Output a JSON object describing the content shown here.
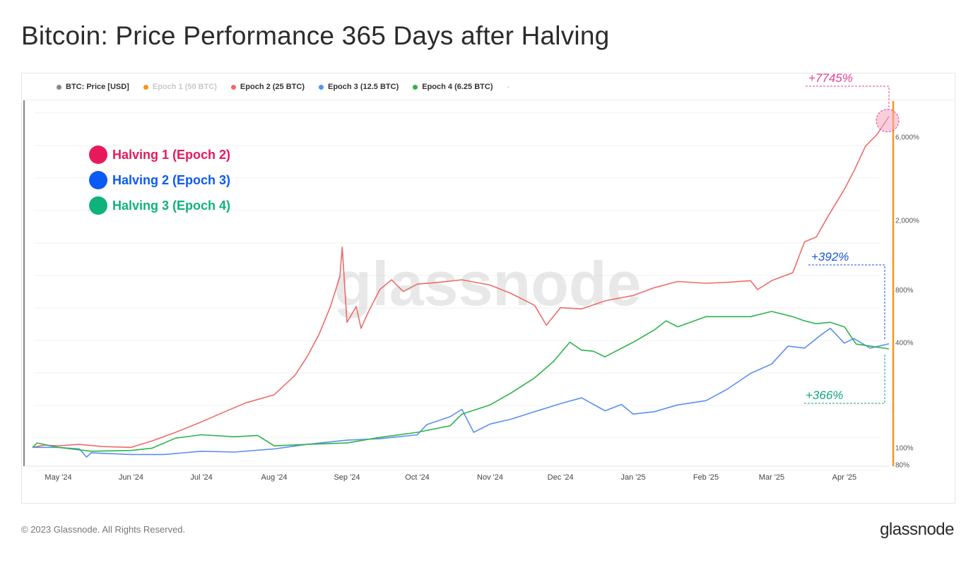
{
  "title": "Bitcoin: Price Performance 365 Days after Halving",
  "legend": [
    {
      "label": "BTC: Price [USD]",
      "color": "#888888",
      "enabled": true
    },
    {
      "label": "Epoch 1 (50 BTC)",
      "color": "#f7931a",
      "enabled": false
    },
    {
      "label": "Epoch 2 (25 BTC)",
      "color": "#ee6b6b",
      "enabled": true
    },
    {
      "label": "Epoch 3 (12.5 BTC)",
      "color": "#5b8ff0",
      "enabled": true
    },
    {
      "label": "Epoch 4 (6.25 BTC)",
      "color": "#2fb34a",
      "enabled": true
    }
  ],
  "legend_more": "-",
  "overlay_legend": [
    {
      "label": "Halving 1 (Epoch 2)",
      "color": "#e8195a"
    },
    {
      "label": "Halving 2 (Epoch 3)",
      "color": "#0a5bf5"
    },
    {
      "label": "Halving 3 (Epoch 4)",
      "color": "#0fb37a"
    }
  ],
  "annotations": [
    {
      "text": "+7745%",
      "color": "#e84393"
    },
    {
      "text": "+392%",
      "color": "#1a55e0"
    },
    {
      "text": "+366%",
      "color": "#11a37f"
    }
  ],
  "watermark": "glassnode",
  "footer": "© 2023 Glassnode. All Rights Reserved.",
  "brand": "glassnode",
  "chart_data": {
    "type": "line",
    "y_scale": "log",
    "yticks": [
      {
        "value": 80,
        "label": "80%"
      },
      {
        "value": 100,
        "label": "100%"
      },
      {
        "value": 400,
        "label": "400%"
      },
      {
        "value": 800,
        "label": "800%"
      },
      {
        "value": 2000,
        "label": "2,000%"
      },
      {
        "value": 6000,
        "label": "6,000%"
      }
    ],
    "ylim": [
      78,
      9000
    ],
    "xlim": [
      "2024-04-20",
      "2025-04-20"
    ],
    "xticks": [
      {
        "date": "2024-05-01",
        "label": "May '24"
      },
      {
        "date": "2024-06-01",
        "label": "Jun '24"
      },
      {
        "date": "2024-07-01",
        "label": "Jul '24"
      },
      {
        "date": "2024-08-01",
        "label": "Aug '24"
      },
      {
        "date": "2024-09-01",
        "label": "Sep '24"
      },
      {
        "date": "2024-10-01",
        "label": "Oct '24"
      },
      {
        "date": "2024-11-01",
        "label": "Nov '24"
      },
      {
        "date": "2024-12-01",
        "label": "Dec '24"
      },
      {
        "date": "2025-01-01",
        "label": "Jan '25"
      },
      {
        "date": "2025-02-01",
        "label": "Feb '25"
      },
      {
        "date": "2025-03-01",
        "label": "Mar '25"
      },
      {
        "date": "2025-04-01",
        "label": "Apr '25"
      }
    ],
    "vertical_marker": {
      "date": "2025-04-20",
      "color": "#f7931a"
    },
    "series": [
      {
        "name": "Epoch 2 (25 BTC)",
        "color": "#ee6b6b",
        "points": [
          {
            "x": "2024-04-20",
            "y": 100
          },
          {
            "x": "2024-04-25",
            "y": 103
          },
          {
            "x": "2024-05-01",
            "y": 102
          },
          {
            "x": "2024-05-10",
            "y": 104
          },
          {
            "x": "2024-05-20",
            "y": 101
          },
          {
            "x": "2024-06-01",
            "y": 100
          },
          {
            "x": "2024-06-10",
            "y": 109
          },
          {
            "x": "2024-06-20",
            "y": 122
          },
          {
            "x": "2024-07-01",
            "y": 140
          },
          {
            "x": "2024-07-10",
            "y": 158
          },
          {
            "x": "2024-07-20",
            "y": 180
          },
          {
            "x": "2024-08-01",
            "y": 200
          },
          {
            "x": "2024-08-10",
            "y": 260
          },
          {
            "x": "2024-08-15",
            "y": 330
          },
          {
            "x": "2024-08-20",
            "y": 440
          },
          {
            "x": "2024-08-25",
            "y": 640
          },
          {
            "x": "2024-08-29",
            "y": 950
          },
          {
            "x": "2024-08-30",
            "y": 1400
          },
          {
            "x": "2024-09-01",
            "y": 520
          },
          {
            "x": "2024-09-05",
            "y": 640
          },
          {
            "x": "2024-09-07",
            "y": 480
          },
          {
            "x": "2024-09-10",
            "y": 590
          },
          {
            "x": "2024-09-15",
            "y": 800
          },
          {
            "x": "2024-09-20",
            "y": 910
          },
          {
            "x": "2024-09-25",
            "y": 780
          },
          {
            "x": "2024-10-01",
            "y": 860
          },
          {
            "x": "2024-10-10",
            "y": 880
          },
          {
            "x": "2024-10-20",
            "y": 910
          },
          {
            "x": "2024-11-01",
            "y": 850
          },
          {
            "x": "2024-11-10",
            "y": 760
          },
          {
            "x": "2024-11-20",
            "y": 650
          },
          {
            "x": "2024-11-25",
            "y": 500
          },
          {
            "x": "2024-12-01",
            "y": 630
          },
          {
            "x": "2024-12-10",
            "y": 620
          },
          {
            "x": "2024-12-20",
            "y": 690
          },
          {
            "x": "2025-01-01",
            "y": 740
          },
          {
            "x": "2025-01-10",
            "y": 820
          },
          {
            "x": "2025-01-20",
            "y": 890
          },
          {
            "x": "2025-02-01",
            "y": 870
          },
          {
            "x": "2025-02-10",
            "y": 880
          },
          {
            "x": "2025-02-20",
            "y": 900
          },
          {
            "x": "2025-02-23",
            "y": 800
          },
          {
            "x": "2025-03-01",
            "y": 900
          },
          {
            "x": "2025-03-10",
            "y": 1000
          },
          {
            "x": "2025-03-15",
            "y": 1500
          },
          {
            "x": "2025-03-20",
            "y": 1600
          },
          {
            "x": "2025-03-25",
            "y": 2100
          },
          {
            "x": "2025-04-01",
            "y": 3000
          },
          {
            "x": "2025-04-05",
            "y": 3800
          },
          {
            "x": "2025-04-10",
            "y": 5300
          },
          {
            "x": "2025-04-15",
            "y": 6200
          },
          {
            "x": "2025-04-20",
            "y": 7845
          }
        ]
      },
      {
        "name": "Epoch 3 (12.5 BTC)",
        "color": "#5b8ff0",
        "points": [
          {
            "x": "2024-04-20",
            "y": 100
          },
          {
            "x": "2024-05-01",
            "y": 100
          },
          {
            "x": "2024-05-10",
            "y": 98
          },
          {
            "x": "2024-05-13",
            "y": 88
          },
          {
            "x": "2024-05-15",
            "y": 93
          },
          {
            "x": "2024-06-01",
            "y": 91
          },
          {
            "x": "2024-06-15",
            "y": 91
          },
          {
            "x": "2024-07-01",
            "y": 95
          },
          {
            "x": "2024-07-15",
            "y": 94
          },
          {
            "x": "2024-08-01",
            "y": 98
          },
          {
            "x": "2024-08-15",
            "y": 104
          },
          {
            "x": "2024-09-01",
            "y": 110
          },
          {
            "x": "2024-09-15",
            "y": 112
          },
          {
            "x": "2024-10-01",
            "y": 118
          },
          {
            "x": "2024-10-05",
            "y": 135
          },
          {
            "x": "2024-10-15",
            "y": 150
          },
          {
            "x": "2024-10-20",
            "y": 165
          },
          {
            "x": "2024-10-25",
            "y": 122
          },
          {
            "x": "2024-11-01",
            "y": 136
          },
          {
            "x": "2024-11-10",
            "y": 145
          },
          {
            "x": "2024-11-20",
            "y": 160
          },
          {
            "x": "2024-12-01",
            "y": 178
          },
          {
            "x": "2024-12-10",
            "y": 192
          },
          {
            "x": "2024-12-20",
            "y": 162
          },
          {
            "x": "2024-12-27",
            "y": 176
          },
          {
            "x": "2025-01-01",
            "y": 155
          },
          {
            "x": "2025-01-10",
            "y": 160
          },
          {
            "x": "2025-01-20",
            "y": 175
          },
          {
            "x": "2025-02-01",
            "y": 185
          },
          {
            "x": "2025-02-10",
            "y": 215
          },
          {
            "x": "2025-02-20",
            "y": 265
          },
          {
            "x": "2025-03-01",
            "y": 300
          },
          {
            "x": "2025-03-08",
            "y": 380
          },
          {
            "x": "2025-03-15",
            "y": 370
          },
          {
            "x": "2025-03-22",
            "y": 440
          },
          {
            "x": "2025-03-26",
            "y": 480
          },
          {
            "x": "2025-04-01",
            "y": 395
          },
          {
            "x": "2025-04-05",
            "y": 420
          },
          {
            "x": "2025-04-12",
            "y": 370
          },
          {
            "x": "2025-04-20",
            "y": 392
          }
        ]
      },
      {
        "name": "Epoch 4 (6.25 BTC)",
        "color": "#2fb34a",
        "points": [
          {
            "x": "2024-04-20",
            "y": 100
          },
          {
            "x": "2024-04-22",
            "y": 106
          },
          {
            "x": "2024-05-01",
            "y": 100
          },
          {
            "x": "2024-05-15",
            "y": 95
          },
          {
            "x": "2024-06-01",
            "y": 96
          },
          {
            "x": "2024-06-10",
            "y": 99
          },
          {
            "x": "2024-06-20",
            "y": 113
          },
          {
            "x": "2024-07-01",
            "y": 118
          },
          {
            "x": "2024-07-15",
            "y": 115
          },
          {
            "x": "2024-07-25",
            "y": 117
          },
          {
            "x": "2024-08-01",
            "y": 102
          },
          {
            "x": "2024-08-15",
            "y": 104
          },
          {
            "x": "2024-09-01",
            "y": 106
          },
          {
            "x": "2024-09-15",
            "y": 114
          },
          {
            "x": "2024-10-01",
            "y": 122
          },
          {
            "x": "2024-10-15",
            "y": 133
          },
          {
            "x": "2024-10-20",
            "y": 155
          },
          {
            "x": "2024-11-01",
            "y": 175
          },
          {
            "x": "2024-11-10",
            "y": 205
          },
          {
            "x": "2024-11-20",
            "y": 250
          },
          {
            "x": "2024-11-28",
            "y": 310
          },
          {
            "x": "2024-12-05",
            "y": 400
          },
          {
            "x": "2024-12-10",
            "y": 360
          },
          {
            "x": "2024-12-15",
            "y": 355
          },
          {
            "x": "2024-12-20",
            "y": 330
          },
          {
            "x": "2025-01-01",
            "y": 400
          },
          {
            "x": "2025-01-10",
            "y": 470
          },
          {
            "x": "2025-01-15",
            "y": 530
          },
          {
            "x": "2025-01-20",
            "y": 490
          },
          {
            "x": "2025-02-01",
            "y": 560
          },
          {
            "x": "2025-02-10",
            "y": 560
          },
          {
            "x": "2025-02-20",
            "y": 560
          },
          {
            "x": "2025-03-01",
            "y": 600
          },
          {
            "x": "2025-03-10",
            "y": 560
          },
          {
            "x": "2025-03-15",
            "y": 530
          },
          {
            "x": "2025-03-20",
            "y": 510
          },
          {
            "x": "2025-03-26",
            "y": 520
          },
          {
            "x": "2025-04-01",
            "y": 490
          },
          {
            "x": "2025-04-06",
            "y": 390
          },
          {
            "x": "2025-04-12",
            "y": 380
          },
          {
            "x": "2025-04-20",
            "y": 366
          }
        ]
      }
    ]
  }
}
